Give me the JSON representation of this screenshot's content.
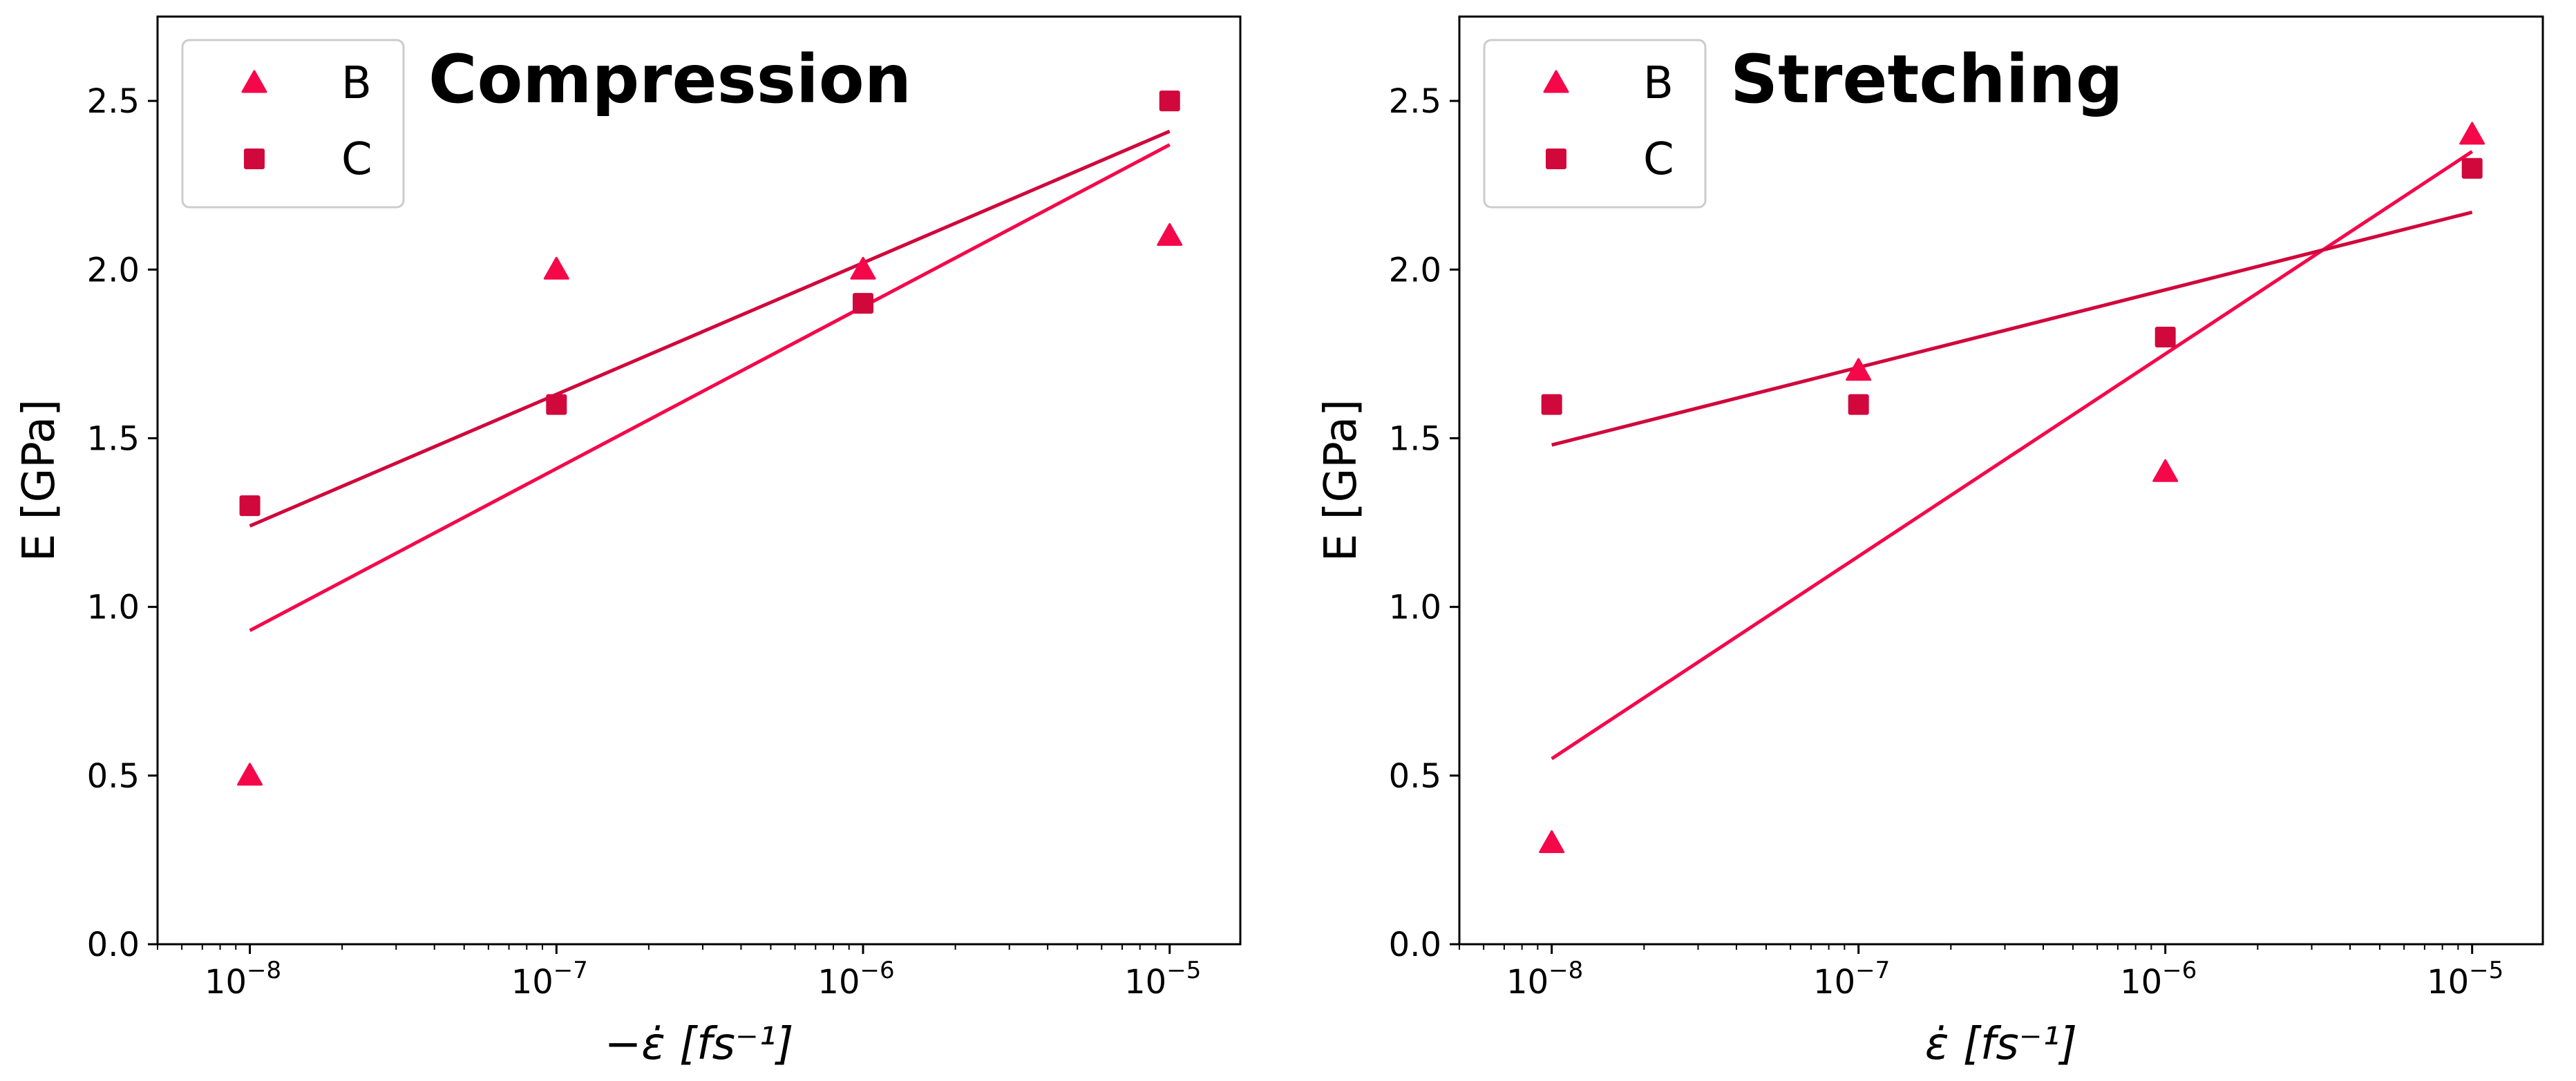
{
  "chart_data": [
    {
      "type": "scatter",
      "title": "Compression",
      "xlabel": "−ε̇ [fs⁻¹]",
      "ylabel": "E [GPa]",
      "xscale": "log",
      "xlim": [
        5e-09,
        1.7e-05
      ],
      "ylim": [
        0,
        2.75
      ],
      "xticks": [
        1e-08,
        1e-07,
        1e-06,
        1e-05
      ],
      "xtick_labels": [
        {
          "base": "10",
          "exp": "−8"
        },
        {
          "base": "10",
          "exp": "−7"
        },
        {
          "base": "10",
          "exp": "−6"
        },
        {
          "base": "10",
          "exp": "−5"
        }
      ],
      "yticks": [
        0.0,
        0.5,
        1.0,
        1.5,
        2.0,
        2.5
      ],
      "ytick_labels": [
        "0.0",
        "0.5",
        "1.0",
        "1.5",
        "2.0",
        "2.5"
      ],
      "legend_position": "top-left",
      "series": [
        {
          "name": "B",
          "marker": "triangle",
          "color": "#F5084A",
          "x": [
            1e-08,
            1e-07,
            1e-06,
            1e-05
          ],
          "y": [
            0.5,
            2.0,
            2.0,
            2.1
          ],
          "fit": {
            "x": [
              1e-08,
              1e-05
            ],
            "y": [
              0.93,
              2.37
            ]
          }
        },
        {
          "name": "C",
          "marker": "square",
          "color": "#D0083C",
          "x": [
            1e-08,
            1e-07,
            1e-06,
            1e-05
          ],
          "y": [
            1.3,
            1.6,
            1.9,
            2.5
          ],
          "fit": {
            "x": [
              1e-08,
              1e-05
            ],
            "y": [
              1.24,
              2.41
            ]
          }
        }
      ]
    },
    {
      "type": "scatter",
      "title": "Stretching",
      "xlabel": "ε̇ [fs⁻¹]",
      "ylabel": "E [GPa]",
      "xscale": "log",
      "xlim": [
        5e-09,
        1.7e-05
      ],
      "ylim": [
        0,
        2.75
      ],
      "xticks": [
        1e-08,
        1e-07,
        1e-06,
        1e-05
      ],
      "xtick_labels": [
        {
          "base": "10",
          "exp": "−8"
        },
        {
          "base": "10",
          "exp": "−7"
        },
        {
          "base": "10",
          "exp": "−6"
        },
        {
          "base": "10",
          "exp": "−5"
        }
      ],
      "yticks": [
        0.0,
        0.5,
        1.0,
        1.5,
        2.0,
        2.5
      ],
      "ytick_labels": [
        "0.0",
        "0.5",
        "1.0",
        "1.5",
        "2.0",
        "2.5"
      ],
      "legend_position": "top-left",
      "series": [
        {
          "name": "B",
          "marker": "triangle",
          "color": "#F5084A",
          "x": [
            1e-08,
            1e-07,
            1e-06,
            1e-05
          ],
          "y": [
            0.3,
            1.7,
            1.4,
            2.4
          ],
          "fit": {
            "x": [
              1e-08,
              1e-05
            ],
            "y": [
              0.55,
              2.35
            ]
          }
        },
        {
          "name": "C",
          "marker": "square",
          "color": "#D0083C",
          "x": [
            1e-08,
            1e-07,
            1e-06,
            1e-05
          ],
          "y": [
            1.6,
            1.6,
            1.8,
            2.3
          ],
          "fit": {
            "x": [
              1e-08,
              1e-05
            ],
            "y": [
              1.48,
              2.17
            ]
          }
        }
      ]
    }
  ]
}
